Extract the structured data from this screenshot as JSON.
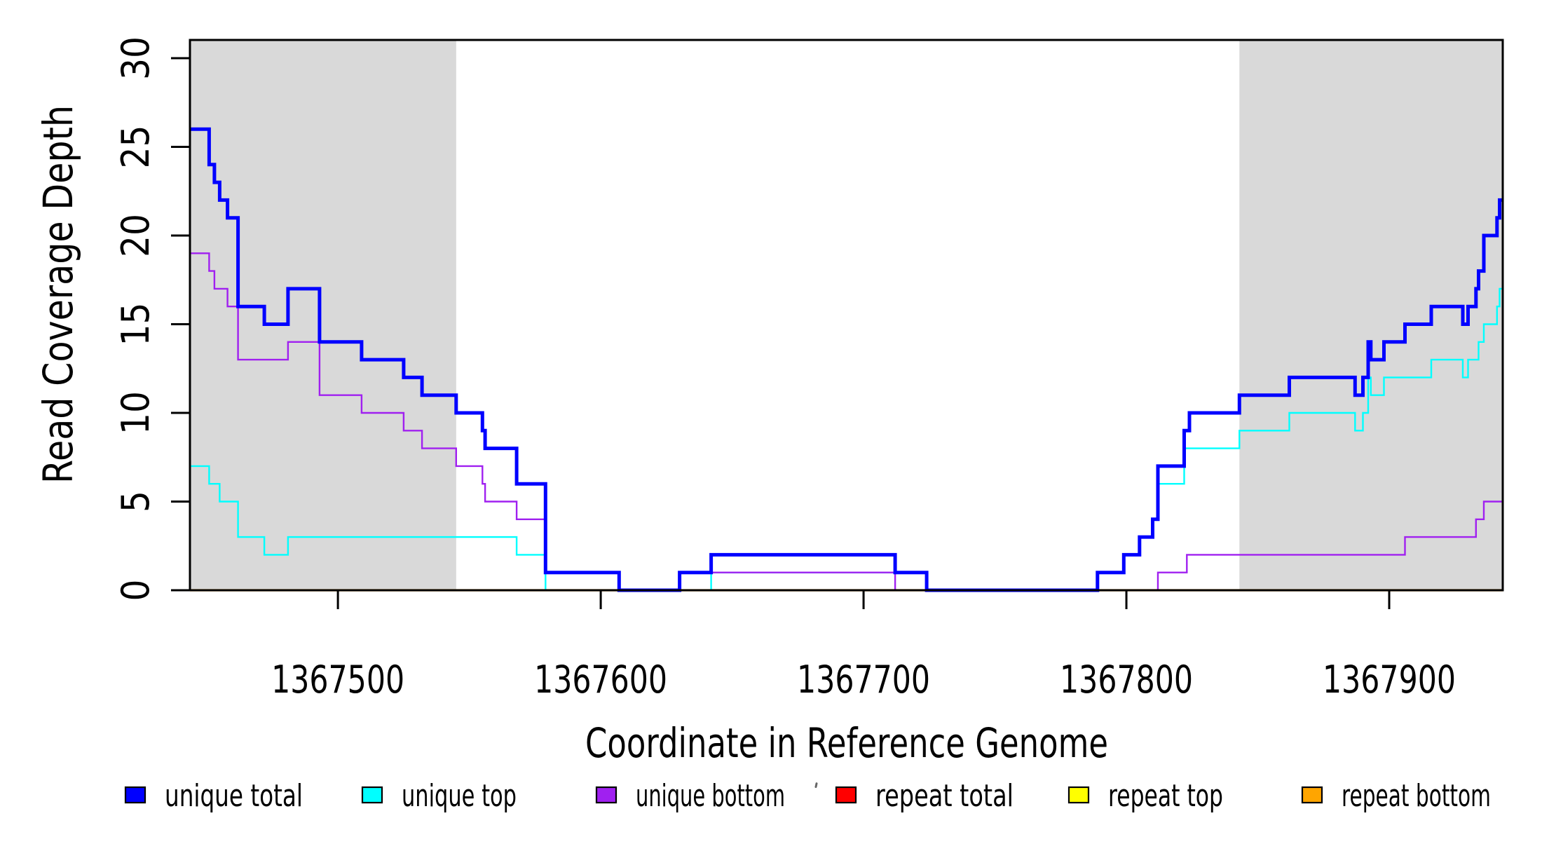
{
  "chart_data": {
    "type": "line",
    "subtype": "step-coverage",
    "title": "",
    "xlabel": "Coordinate in Reference Genome",
    "ylabel": "Read Coverage Depth",
    "xlim": [
      1367443.7,
      1367943.2
    ],
    "ylim": [
      0,
      31
    ],
    "x_ticks": [
      1367500,
      1367600,
      1367700,
      1367800,
      1367900
    ],
    "y_ticks": [
      0,
      5,
      10,
      15,
      20,
      25,
      30
    ],
    "grid": false,
    "legend_position": "bottom",
    "background_color": "#FFFFFF",
    "shaded_band_color": "#D9D9D9",
    "axis_color": "#000000",
    "shaded_regions": [
      {
        "name": "left-gray-band",
        "x_start": 1367443.7,
        "x_end": 1367545.0
      },
      {
        "name": "right-gray-band",
        "x_start": 1367843.0,
        "x_end": 1367943.2
      }
    ],
    "series": [
      {
        "name": "unique total",
        "color": "#0000FF",
        "line_width": 5,
        "steps": [
          [
            1367443.7,
            26
          ],
          [
            1367451,
            24
          ],
          [
            1367453,
            23
          ],
          [
            1367455,
            22
          ],
          [
            1367458,
            21
          ],
          [
            1367462,
            16
          ],
          [
            1367472,
            15
          ],
          [
            1367481,
            17
          ],
          [
            1367493,
            14
          ],
          [
            1367509,
            13
          ],
          [
            1367525,
            12
          ],
          [
            1367532,
            11
          ],
          [
            1367545,
            10
          ],
          [
            1367555,
            9
          ],
          [
            1367556,
            8
          ],
          [
            1367568,
            6
          ],
          [
            1367579,
            1
          ],
          [
            1367607,
            0
          ],
          [
            1367630,
            1
          ],
          [
            1367642,
            2
          ],
          [
            1367712,
            1
          ],
          [
            1367724,
            0
          ],
          [
            1367789,
            1
          ],
          [
            1367799,
            2
          ],
          [
            1367805,
            3
          ],
          [
            1367810,
            4
          ],
          [
            1367812,
            7
          ],
          [
            1367822,
            9
          ],
          [
            1367824,
            10
          ],
          [
            1367843,
            11
          ],
          [
            1367862,
            12
          ],
          [
            1367887,
            11
          ],
          [
            1367890,
            12
          ],
          [
            1367892,
            14
          ],
          [
            1367893,
            13
          ],
          [
            1367898,
            14
          ],
          [
            1367906,
            15
          ],
          [
            1367916,
            16
          ],
          [
            1367928,
            15
          ],
          [
            1367930,
            16
          ],
          [
            1367933,
            17
          ],
          [
            1367934,
            18
          ],
          [
            1367936,
            20
          ],
          [
            1367941,
            21
          ],
          [
            1367942,
            22
          ]
        ]
      },
      {
        "name": "unique top",
        "color": "#00FFFF",
        "line_width": 2.4,
        "steps": [
          [
            1367443.7,
            7
          ],
          [
            1367451,
            6
          ],
          [
            1367455,
            5
          ],
          [
            1367462,
            3
          ],
          [
            1367472,
            2
          ],
          [
            1367481,
            3
          ],
          [
            1367568,
            2
          ],
          [
            1367579,
            0
          ],
          [
            1367642,
            1
          ],
          [
            1367724,
            0
          ],
          [
            1367789,
            1
          ],
          [
            1367799,
            2
          ],
          [
            1367805,
            3
          ],
          [
            1367810,
            4
          ],
          [
            1367812,
            6
          ],
          [
            1367822,
            8
          ],
          [
            1367843,
            9
          ],
          [
            1367862,
            10
          ],
          [
            1367887,
            9
          ],
          [
            1367890,
            10
          ],
          [
            1367892,
            12
          ],
          [
            1367893,
            11
          ],
          [
            1367898,
            12
          ],
          [
            1367916,
            13
          ],
          [
            1367928,
            12
          ],
          [
            1367930,
            13
          ],
          [
            1367934,
            14
          ],
          [
            1367936,
            15
          ],
          [
            1367941,
            16
          ],
          [
            1367942,
            17
          ]
        ]
      },
      {
        "name": "unique bottom",
        "color": "#A020F0",
        "line_width": 2.4,
        "steps": [
          [
            1367443.7,
            19
          ],
          [
            1367451,
            18
          ],
          [
            1367453,
            17
          ],
          [
            1367458,
            16
          ],
          [
            1367462,
            13
          ],
          [
            1367481,
            14
          ],
          [
            1367493,
            11
          ],
          [
            1367509,
            10
          ],
          [
            1367525,
            9
          ],
          [
            1367532,
            8
          ],
          [
            1367545,
            7
          ],
          [
            1367555,
            6
          ],
          [
            1367556,
            5
          ],
          [
            1367568,
            4
          ],
          [
            1367579,
            1
          ],
          [
            1367607,
            0
          ],
          [
            1367630,
            1
          ],
          [
            1367712,
            0
          ],
          [
            1367812,
            1
          ],
          [
            1367823,
            2
          ],
          [
            1367906,
            3
          ],
          [
            1367933,
            4
          ],
          [
            1367936,
            5
          ]
        ]
      },
      {
        "name": "repeat total",
        "color": "#FF0000",
        "line_width": 2.4,
        "steps": [
          [
            1367443.7,
            0
          ]
        ]
      },
      {
        "name": "repeat top",
        "color": "#FFFF00",
        "line_width": 2.4,
        "steps": [
          [
            1367443.7,
            0
          ]
        ]
      },
      {
        "name": "repeat bottom",
        "color": "#FFA500",
        "line_width": 3.2,
        "steps": [
          [
            1367443.7,
            0
          ]
        ]
      }
    ],
    "draw_order": [
      "repeat total",
      "repeat top",
      "repeat bottom",
      "unique top",
      "unique bottom",
      "unique total"
    ],
    "legend": [
      {
        "label": "unique total",
        "color": "#0000FF"
      },
      {
        "label": "unique top",
        "color": "#00FFFF"
      },
      {
        "label": "unique bottom",
        "color": "#A020F0"
      },
      {
        "label": "repeat total",
        "color": "#FF0000"
      },
      {
        "label": "repeat top",
        "color": "#FFFF00"
      },
      {
        "label": "repeat bottom",
        "color": "#FFA500"
      }
    ]
  }
}
